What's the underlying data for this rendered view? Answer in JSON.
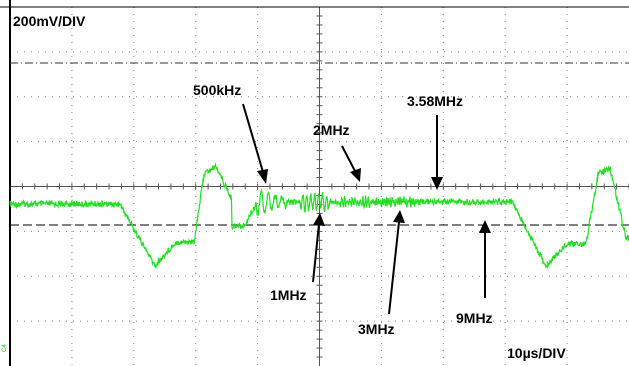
{
  "scope": {
    "scale_label": "200mV/DIV",
    "timebase_label": "10µs/DIV",
    "channel_label": "C4",
    "colors": {
      "trace": "#22dd22",
      "grid": "#888888",
      "frame": "#000000",
      "background": "#ffffff",
      "annotation": "#000000"
    },
    "grid": {
      "h_divisions": 10,
      "v_divisions": 8
    },
    "reference_lines": [
      "dash-dot",
      "dashed"
    ]
  },
  "annotations": {
    "f500khz": "500kHz",
    "f1mhz": "1MHz",
    "f2mhz": "2MHz",
    "f3mhz": "3MHz",
    "f358mhz": "3.58MHz",
    "f9mhz": "9MHz"
  }
}
